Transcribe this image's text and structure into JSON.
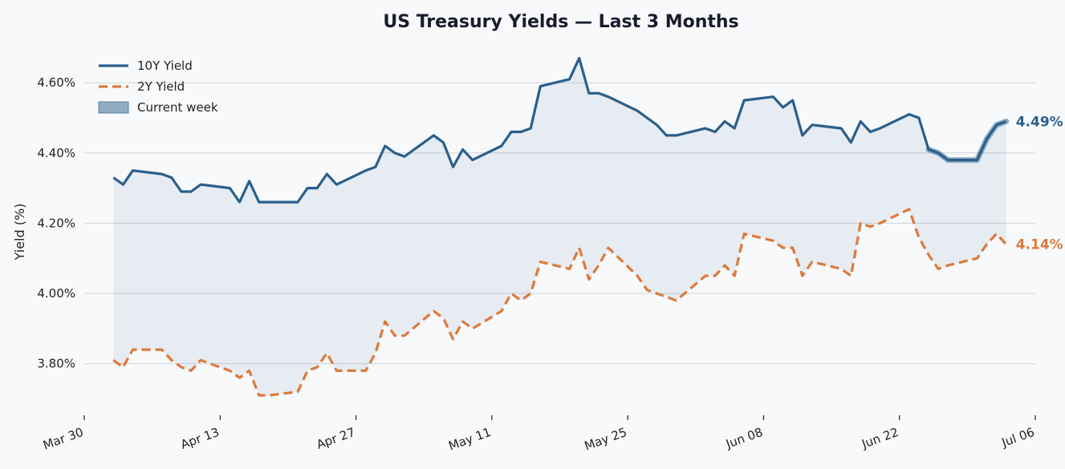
{
  "chart_data": {
    "type": "line",
    "title": "US Treasury Yields — Last 3 Months",
    "ylabel": "Yield (%)",
    "xlabel": "",
    "x_range": [
      "2025-03-30",
      "2025-07-06"
    ],
    "ylim": [
      3.66,
      4.71
    ],
    "y_ticks": [
      3.8,
      4.0,
      4.2,
      4.4,
      4.6
    ],
    "y_tick_labels": [
      "3.80%",
      "4.00%",
      "4.20%",
      "4.40%",
      "4.60%"
    ],
    "x_ticks": [
      "2025-03-30",
      "2025-04-13",
      "2025-04-27",
      "2025-05-11",
      "2025-05-25",
      "2025-06-08",
      "2025-06-22",
      "2025-07-06"
    ],
    "x_tick_labels": [
      "Mar 30",
      "Apr 13",
      "Apr 27",
      "May 11",
      "May 25",
      "Jun 08",
      "Jun 22",
      "Jul 06"
    ],
    "grid": "horizontal",
    "legend_position": "top-left",
    "legend": [
      "10Y Yield",
      "2Y Yield",
      "Current week"
    ],
    "dates": [
      "2025-04-02",
      "2025-04-03",
      "2025-04-04",
      "2025-04-07",
      "2025-04-08",
      "2025-04-09",
      "2025-04-10",
      "2025-04-11",
      "2025-04-14",
      "2025-04-15",
      "2025-04-16",
      "2025-04-17",
      "2025-04-18",
      "2025-04-21",
      "2025-04-22",
      "2025-04-23",
      "2025-04-24",
      "2025-04-25",
      "2025-04-28",
      "2025-04-29",
      "2025-04-30",
      "2025-05-01",
      "2025-05-02",
      "2025-05-05",
      "2025-05-06",
      "2025-05-07",
      "2025-05-08",
      "2025-05-09",
      "2025-05-12",
      "2025-05-13",
      "2025-05-14",
      "2025-05-15",
      "2025-05-16",
      "2025-05-19",
      "2025-05-20",
      "2025-05-21",
      "2025-05-22",
      "2025-05-23",
      "2025-05-26",
      "2025-05-27",
      "2025-05-28",
      "2025-05-29",
      "2025-05-30",
      "2025-06-02",
      "2025-06-03",
      "2025-06-04",
      "2025-06-05",
      "2025-06-06",
      "2025-06-09",
      "2025-06-10",
      "2025-06-11",
      "2025-06-12",
      "2025-06-13",
      "2025-06-16",
      "2025-06-17",
      "2025-06-18",
      "2025-06-19",
      "2025-06-20",
      "2025-06-23",
      "2025-06-24",
      "2025-06-25",
      "2025-06-26",
      "2025-06-27",
      "2025-06-30",
      "2025-07-01",
      "2025-07-02",
      "2025-07-03"
    ],
    "series": [
      {
        "name": "10Y Yield",
        "color": "#2b5f8a",
        "style": "solid",
        "values": [
          4.33,
          4.31,
          4.35,
          4.34,
          4.33,
          4.29,
          4.29,
          4.31,
          4.3,
          4.26,
          4.32,
          4.26,
          4.26,
          4.26,
          4.3,
          4.3,
          4.34,
          4.31,
          4.35,
          4.36,
          4.42,
          4.4,
          4.39,
          4.45,
          4.43,
          4.36,
          4.41,
          4.38,
          4.42,
          4.46,
          4.46,
          4.47,
          4.59,
          4.61,
          4.67,
          4.57,
          4.57,
          4.56,
          4.52,
          4.5,
          4.48,
          4.45,
          4.45,
          4.47,
          4.46,
          4.49,
          4.47,
          4.55,
          4.56,
          4.53,
          4.55,
          4.45,
          4.48,
          4.47,
          4.43,
          4.49,
          4.46,
          4.47,
          4.51,
          4.5,
          4.41,
          4.4,
          4.38,
          4.38,
          4.44,
          4.48,
          4.49
        ],
        "end_label": "4.49%"
      },
      {
        "name": "2Y Yield",
        "color": "#dd7a3c",
        "style": "dashed",
        "values": [
          3.81,
          3.79,
          3.84,
          3.84,
          3.81,
          3.79,
          3.78,
          3.81,
          3.78,
          3.76,
          3.78,
          3.71,
          3.71,
          3.72,
          3.78,
          3.79,
          3.83,
          3.78,
          3.78,
          3.83,
          3.92,
          3.88,
          3.88,
          3.95,
          3.93,
          3.87,
          3.92,
          3.9,
          3.95,
          4.0,
          3.98,
          4.0,
          4.09,
          4.07,
          4.13,
          4.04,
          4.08,
          4.13,
          4.05,
          4.01,
          4.0,
          3.99,
          3.98,
          4.05,
          4.05,
          4.08,
          4.05,
          4.17,
          4.15,
          4.13,
          4.13,
          4.05,
          4.09,
          4.07,
          4.05,
          4.2,
          4.19,
          4.2,
          4.24,
          4.16,
          4.11,
          4.07,
          4.08,
          4.1,
          4.14,
          4.17,
          4.14
        ],
        "end_label": "4.14%"
      }
    ],
    "spread_fill": {
      "between": [
        "10Y Yield",
        "2Y Yield"
      ],
      "color": "#2b5f8a",
      "opacity": 0.08
    },
    "current_week": {
      "name": "Current week",
      "start": "2025-06-25",
      "end": "2025-07-03",
      "color": "#2b5f8a",
      "opacity": 0.5
    }
  }
}
